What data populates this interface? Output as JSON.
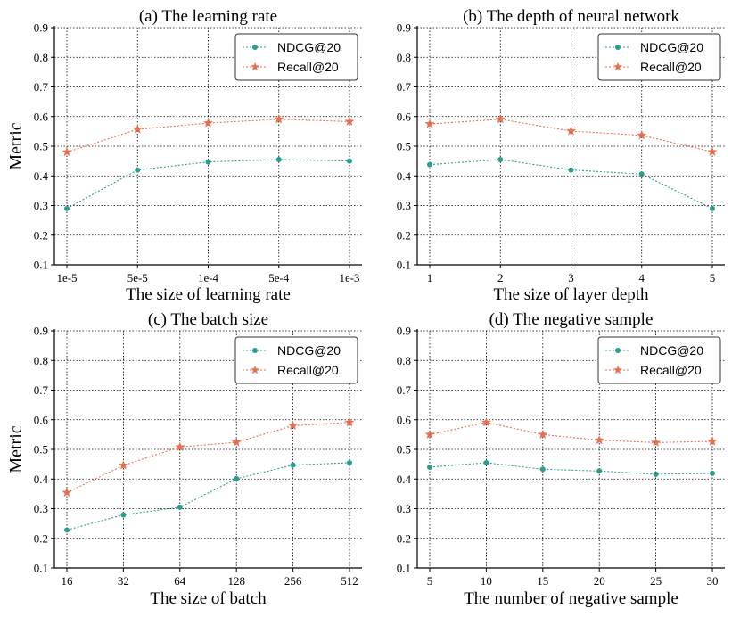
{
  "colors": {
    "ndcg": "#2a9d8f",
    "recall": "#e76f51",
    "grid": "#000000",
    "axis": "#000000"
  },
  "ylabel": "Metric",
  "chart_data": [
    {
      "type": "line",
      "title": "(a) The learning rate",
      "xlabel": "The size of learning rate",
      "ylabel": "Metric",
      "categories": [
        "1e-5",
        "5e-5",
        "1e-4",
        "5e-4",
        "1e-3"
      ],
      "ylim": [
        0.1,
        0.9
      ],
      "yticks": [
        "0.1",
        "0.2",
        "0.3",
        "0.4",
        "0.5",
        "0.6",
        "0.7",
        "0.8",
        "0.9"
      ],
      "grid": true,
      "legend": "top-right",
      "series": [
        {
          "name": "NDCG@20",
          "marker": "circle",
          "values": [
            0.29,
            0.42,
            0.447,
            0.455,
            0.45
          ]
        },
        {
          "name": "Recall@20",
          "marker": "star",
          "values": [
            0.48,
            0.557,
            0.578,
            0.591,
            0.583
          ]
        }
      ]
    },
    {
      "type": "line",
      "title": "(b) The depth of neural network",
      "xlabel": "The size of layer depth",
      "ylabel": "",
      "categories": [
        "1",
        "2",
        "3",
        "4",
        "5"
      ],
      "ylim": [
        0.1,
        0.9
      ],
      "yticks": [
        "0.1",
        "0.2",
        "0.3",
        "0.4",
        "0.5",
        "0.6",
        "0.7",
        "0.8",
        "0.9"
      ],
      "grid": true,
      "legend": "top-right",
      "series": [
        {
          "name": "NDCG@20",
          "marker": "circle",
          "values": [
            0.438,
            0.455,
            0.42,
            0.406,
            0.29
          ]
        },
        {
          "name": "Recall@20",
          "marker": "star",
          "values": [
            0.575,
            0.591,
            0.551,
            0.537,
            0.481
          ]
        }
      ]
    },
    {
      "type": "line",
      "title": "(c) The batch size",
      "xlabel": "The size of batch",
      "ylabel": "Metric",
      "categories": [
        "16",
        "32",
        "64",
        "128",
        "256",
        "512"
      ],
      "ylim": [
        0.1,
        0.9
      ],
      "yticks": [
        "0.1",
        "0.2",
        "0.3",
        "0.4",
        "0.5",
        "0.6",
        "0.7",
        "0.8",
        "0.9"
      ],
      "grid": true,
      "legend": "top-right",
      "series": [
        {
          "name": "NDCG@20",
          "marker": "circle",
          "values": [
            0.228,
            0.279,
            0.305,
            0.401,
            0.447,
            0.455
          ]
        },
        {
          "name": "Recall@20",
          "marker": "star",
          "values": [
            0.354,
            0.446,
            0.508,
            0.524,
            0.58,
            0.591
          ]
        }
      ]
    },
    {
      "type": "line",
      "title": "(d) The negative sample",
      "xlabel": "The number of negative sample",
      "ylabel": "",
      "categories": [
        "5",
        "10",
        "15",
        "20",
        "25",
        "30"
      ],
      "ylim": [
        0.1,
        0.9
      ],
      "yticks": [
        "0.1",
        "0.2",
        "0.3",
        "0.4",
        "0.5",
        "0.6",
        "0.7",
        "0.8",
        "0.9"
      ],
      "grid": true,
      "legend": "top-right",
      "series": [
        {
          "name": "NDCG@20",
          "marker": "circle",
          "values": [
            0.44,
            0.455,
            0.433,
            0.427,
            0.416,
            0.419
          ]
        },
        {
          "name": "Recall@20",
          "marker": "star",
          "values": [
            0.55,
            0.591,
            0.55,
            0.531,
            0.523,
            0.527
          ]
        }
      ]
    }
  ]
}
